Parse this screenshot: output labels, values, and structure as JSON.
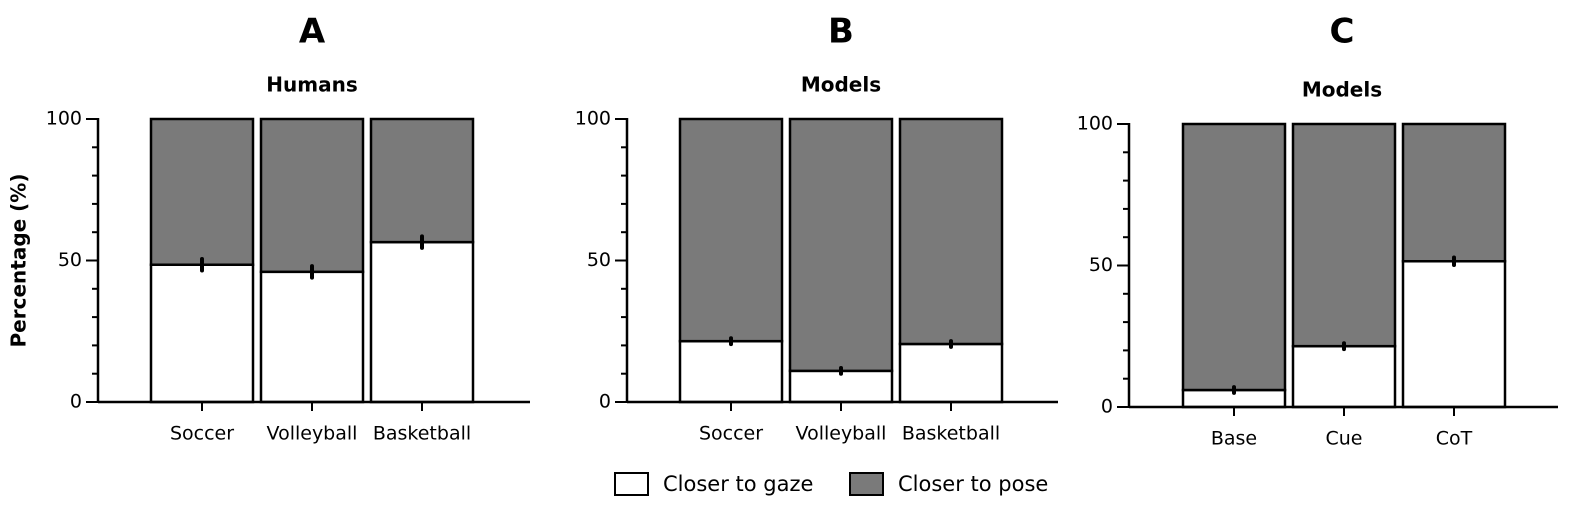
{
  "chart_data": [
    {
      "type": "stacked-bar",
      "label": "A",
      "title": "Humans",
      "ylabel": "Percentage (%)",
      "categories": [
        "Soccer",
        "Volleyball",
        "Basketball"
      ],
      "series": [
        {
          "name": "Closer to gaze",
          "color": "#ffffff",
          "values": [
            48.5,
            46,
            56.5
          ],
          "errors": [
            1.5,
            1.5,
            1.5
          ]
        },
        {
          "name": "Closer to pose",
          "color": "#7a7a7a",
          "values": [
            51.5,
            54,
            43.5
          ]
        }
      ],
      "ylim": [
        0,
        100
      ],
      "yticks": [
        0,
        50,
        100
      ],
      "yticks_minor": [
        10,
        20,
        30,
        40,
        60,
        70,
        80,
        90
      ]
    },
    {
      "type": "stacked-bar",
      "label": "B",
      "title": "Models",
      "categories": [
        "Soccer",
        "Volleyball",
        "Basketball"
      ],
      "series": [
        {
          "color": "#ffffff",
          "values": [
            21.5,
            11,
            20.5
          ],
          "errors": [
            0.5,
            0.5,
            0.5
          ]
        },
        {
          "color": "#7a7a7a",
          "values": [
            78.5,
            89,
            79.5
          ]
        }
      ],
      "ylim": [
        0,
        100
      ],
      "yticks": [
        0,
        50,
        100
      ],
      "yticks_minor": [
        10,
        20,
        30,
        40,
        60,
        70,
        80,
        90
      ]
    },
    {
      "type": "stacked-bar",
      "label": "C",
      "title": "Models",
      "categories": [
        "Base",
        "Cue",
        "CoT"
      ],
      "series": [
        {
          "color": "#ffffff",
          "values": [
            6,
            21.5,
            51.5
          ],
          "errors": [
            0.5,
            0.5,
            0.8
          ]
        },
        {
          "color": "#7a7a7a",
          "values": [
            94,
            78.5,
            48.5
          ]
        }
      ],
      "ylim": [
        0,
        100
      ],
      "yticks": [
        0,
        50,
        100
      ],
      "yticks_minor": [
        10,
        20,
        30,
        40,
        60,
        70,
        80,
        90
      ]
    }
  ]
}
